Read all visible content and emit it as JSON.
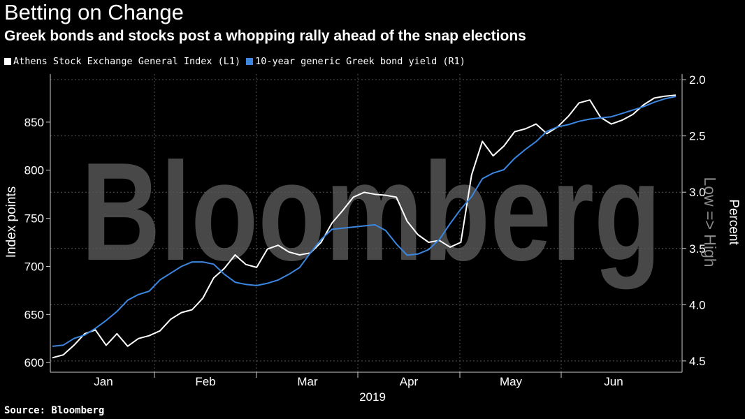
{
  "header": {
    "title": "Betting on Change",
    "subtitle": "Greek bonds and stocks post a whopping rally ahead of the snap elections"
  },
  "footer": {
    "source": "Source: Bloomberg"
  },
  "watermark": "Bloomberg",
  "chart_data": {
    "type": "line",
    "title": "Betting on Change",
    "xlabel": "2019",
    "x_ticks": [
      "Jan",
      "Feb",
      "Mar",
      "Apr",
      "May",
      "Jun"
    ],
    "left_axis": {
      "label": "Index points",
      "range": [
        590,
        900
      ],
      "ticks": [
        600,
        650,
        700,
        750,
        800,
        850
      ]
    },
    "right_axis": {
      "label": "Percent",
      "annotation": "Low => High",
      "range": [
        4.5,
        2.0
      ],
      "inverted": true,
      "ticks": [
        "2.0",
        "2.5",
        "3.0",
        "3.5",
        "4.0",
        "4.5"
      ]
    },
    "x_domain": [
      0,
      174
    ],
    "legend_position": "top-left",
    "series": [
      {
        "name": "Athens Stock Exchange General Index (L1)",
        "axis": "left",
        "color": "#ffffff",
        "x": [
          0,
          3,
          6,
          9,
          12,
          15,
          18,
          21,
          24,
          27,
          30,
          33,
          36,
          39,
          42,
          45,
          48,
          51,
          54,
          57,
          60,
          63,
          66,
          69,
          72,
          75,
          78,
          81,
          84,
          87,
          90,
          93,
          96,
          99,
          102,
          105,
          108,
          111,
          114,
          117,
          120,
          123,
          126,
          129,
          132,
          135,
          138,
          141,
          144,
          147,
          150,
          153,
          156,
          159,
          162,
          165,
          168,
          171,
          174
        ],
        "values": [
          605,
          608,
          618,
          630,
          634,
          618,
          630,
          617,
          625,
          628,
          633,
          645,
          652,
          655,
          667,
          688,
          698,
          712,
          702,
          699,
          718,
          722,
          715,
          712,
          714,
          725,
          745,
          758,
          772,
          777,
          775,
          774,
          772,
          747,
          733,
          725,
          727,
          720,
          725,
          795,
          830,
          815,
          825,
          840,
          843,
          848,
          838,
          845,
          856,
          870,
          873,
          855,
          848,
          852,
          858,
          868,
          875,
          877,
          878
        ]
      },
      {
        "name": "10-year generic Greek bond yield (R1)",
        "axis": "right",
        "color": "#3b86e0",
        "x": [
          0,
          3,
          6,
          9,
          12,
          15,
          18,
          21,
          24,
          27,
          30,
          33,
          36,
          39,
          42,
          45,
          48,
          51,
          54,
          57,
          60,
          63,
          66,
          69,
          72,
          75,
          78,
          81,
          84,
          87,
          90,
          93,
          96,
          99,
          102,
          105,
          108,
          111,
          114,
          117,
          120,
          123,
          126,
          129,
          132,
          135,
          138,
          141,
          144,
          147,
          150,
          153,
          156,
          159,
          162,
          165,
          168,
          171,
          174
        ],
        "values": [
          4.37,
          4.36,
          4.3,
          4.27,
          4.21,
          4.14,
          4.06,
          3.96,
          3.91,
          3.88,
          3.78,
          3.72,
          3.66,
          3.62,
          3.62,
          3.64,
          3.73,
          3.8,
          3.82,
          3.83,
          3.81,
          3.78,
          3.73,
          3.67,
          3.54,
          3.42,
          3.33,
          3.32,
          3.31,
          3.3,
          3.29,
          3.34,
          3.46,
          3.56,
          3.55,
          3.51,
          3.42,
          3.28,
          3.15,
          3.04,
          2.88,
          2.83,
          2.8,
          2.7,
          2.62,
          2.55,
          2.46,
          2.42,
          2.4,
          2.37,
          2.35,
          2.34,
          2.33,
          2.3,
          2.27,
          2.24,
          2.2,
          2.17,
          2.15
        ]
      }
    ]
  }
}
